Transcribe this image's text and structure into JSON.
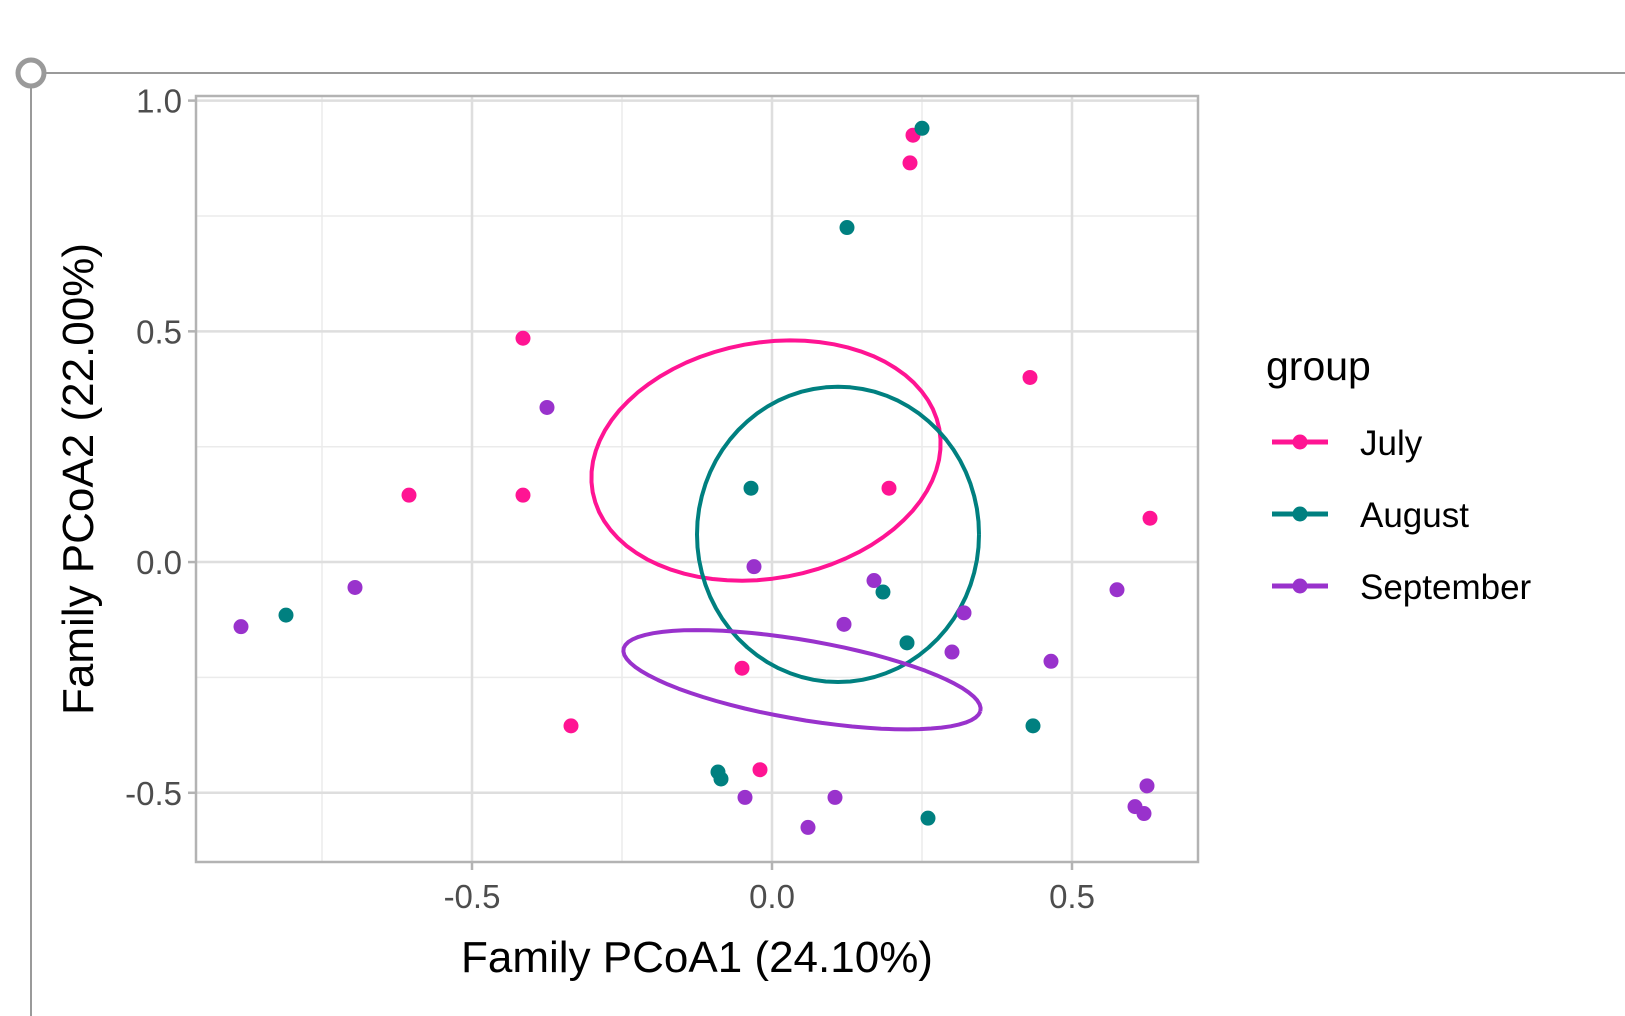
{
  "chart_data": {
    "type": "scatter",
    "xlabel": "Family PCoA1 (24.10%)",
    "ylabel": "Family PCoA2 (22.00%)",
    "xlim": [
      -0.96,
      0.71
    ],
    "ylim": [
      -0.65,
      1.01
    ],
    "x_ticks": [
      -0.5,
      0.0,
      0.5
    ],
    "x_tick_labels": [
      "-0.5",
      "0.0",
      "0.5"
    ],
    "y_ticks": [
      -0.5,
      0.0,
      0.5,
      1.0
    ],
    "y_tick_labels": [
      "-0.5",
      "0.0",
      "0.5",
      "1.0"
    ],
    "grid": true,
    "legend_title": "group",
    "legend_position": "right",
    "series": [
      {
        "name": "July",
        "color": "#FF1493",
        "points": [
          [
            0.235,
            0.925
          ],
          [
            0.23,
            0.865
          ],
          [
            -0.415,
            0.485
          ],
          [
            0.43,
            0.4
          ],
          [
            -0.605,
            0.145
          ],
          [
            -0.415,
            0.145
          ],
          [
            0.195,
            0.16
          ],
          [
            0.63,
            0.095
          ],
          [
            -0.05,
            -0.23
          ],
          [
            -0.335,
            -0.355
          ],
          [
            -0.02,
            -0.45
          ]
        ],
        "ellipse": {
          "cx": -0.01,
          "cy": 0.22,
          "rx": 0.3,
          "ry": 0.25,
          "angle_deg": 26
        }
      },
      {
        "name": "August",
        "color": "#008080",
        "points": [
          [
            0.25,
            0.94
          ],
          [
            0.125,
            0.725
          ],
          [
            -0.035,
            0.16
          ],
          [
            0.185,
            -0.065
          ],
          [
            -0.81,
            -0.115
          ],
          [
            0.225,
            -0.175
          ],
          [
            0.435,
            -0.355
          ],
          [
            -0.09,
            -0.455
          ],
          [
            -0.085,
            -0.47
          ],
          [
            0.26,
            -0.555
          ]
        ],
        "ellipse": {
          "cx": 0.11,
          "cy": 0.06,
          "rx": 0.235,
          "ry": 0.32,
          "angle_deg": 0
        }
      },
      {
        "name": "September",
        "color": "#9932CC",
        "points": [
          [
            -0.375,
            0.335
          ],
          [
            -0.03,
            -0.01
          ],
          [
            0.17,
            -0.04
          ],
          [
            -0.695,
            -0.055
          ],
          [
            0.575,
            -0.06
          ],
          [
            -0.885,
            -0.14
          ],
          [
            0.32,
            -0.11
          ],
          [
            0.12,
            -0.135
          ],
          [
            0.3,
            -0.195
          ],
          [
            0.465,
            -0.215
          ],
          [
            0.625,
            -0.485
          ],
          [
            -0.045,
            -0.51
          ],
          [
            0.105,
            -0.51
          ],
          [
            0.605,
            -0.53
          ],
          [
            0.62,
            -0.545
          ],
          [
            0.06,
            -0.575
          ]
        ],
        "ellipse": {
          "cx": 0.05,
          "cy": -0.255,
          "rx": 0.305,
          "ry": 0.085,
          "angle_deg": -13
        }
      }
    ]
  }
}
